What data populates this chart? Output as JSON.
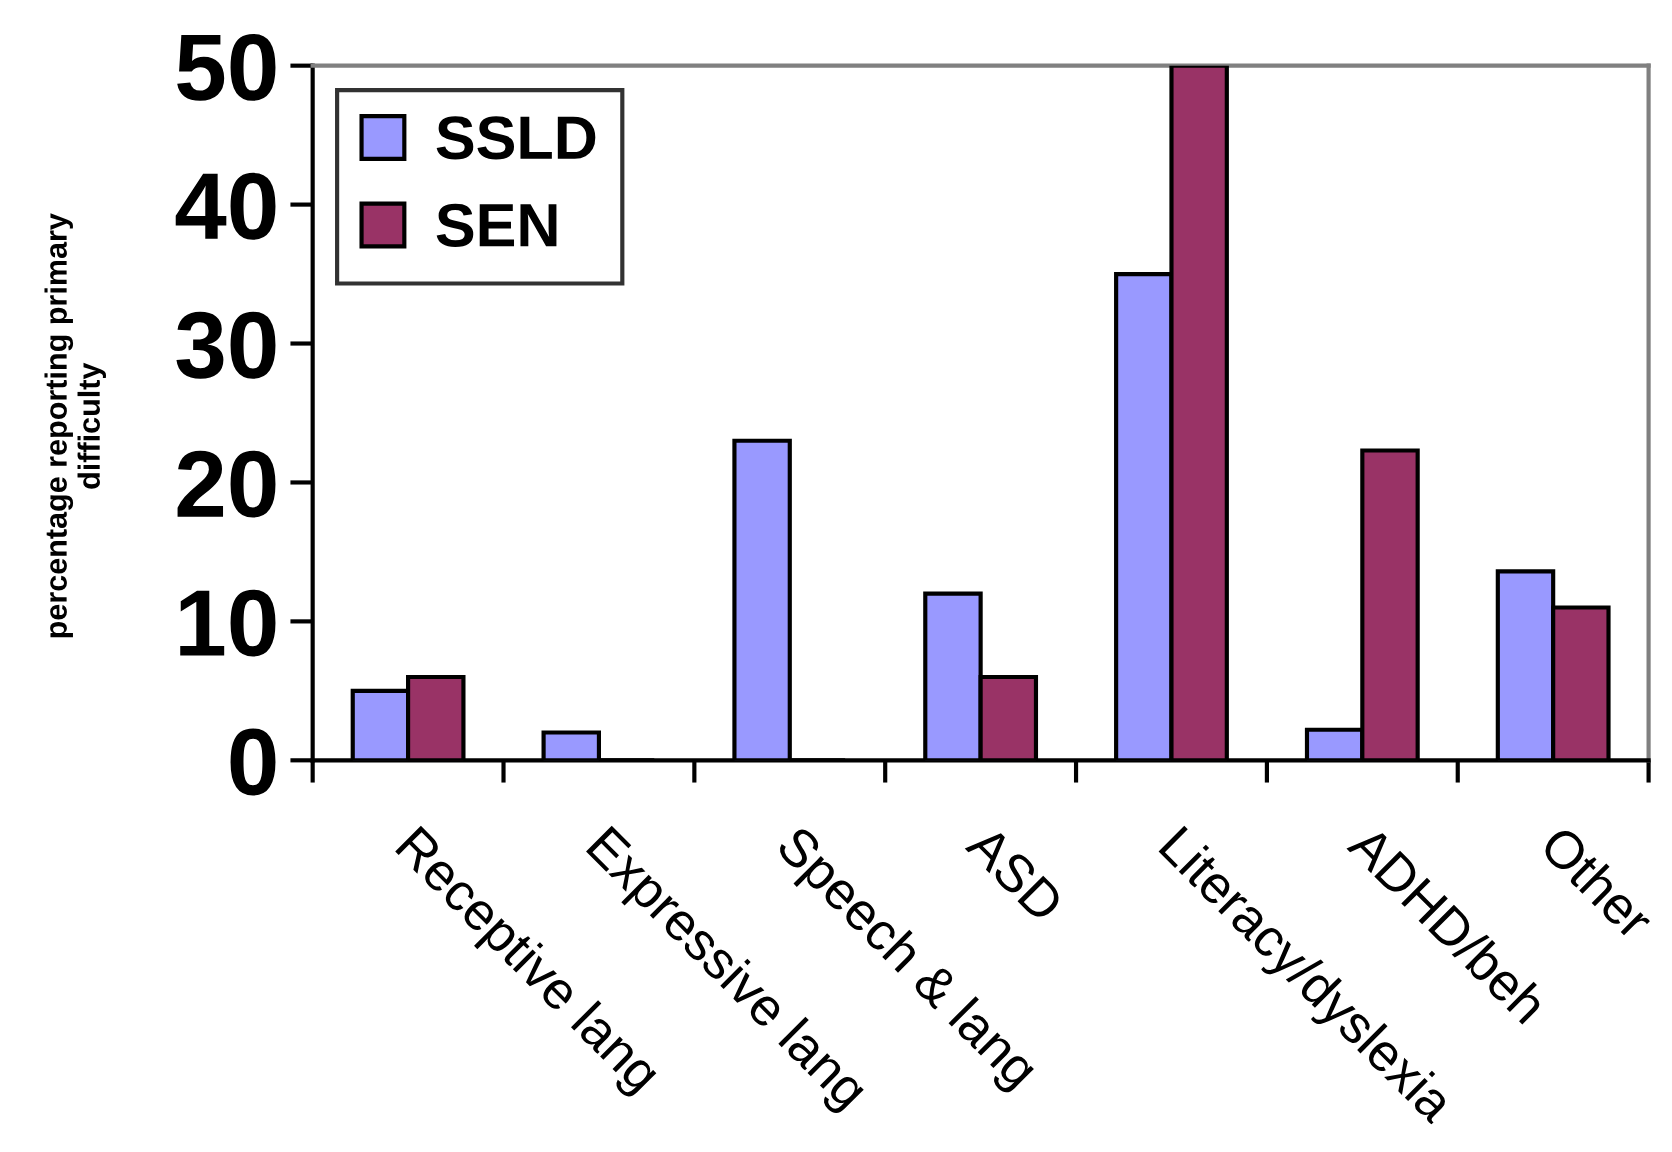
{
  "chart_data": {
    "type": "bar",
    "ylabel": "percentage reporting primary\ndifficulty",
    "categories": [
      "Receptive lang",
      "Expressive lang",
      "Speech & lang",
      "ASD",
      "Literacy/dyslexia",
      "ADHD/beh",
      "Other"
    ],
    "series": [
      {
        "name": "SSLD",
        "color": "#9999ff",
        "values": [
          5,
          2,
          23,
          12,
          35,
          2.2,
          13.6
        ]
      },
      {
        "name": "SEN",
        "color": "#993366",
        "values": [
          6,
          0,
          0,
          6,
          50,
          22.3,
          11
        ]
      }
    ],
    "ylim": [
      0,
      50
    ],
    "yticks": [
      0,
      10,
      20,
      30,
      40,
      50
    ],
    "legend": "top left"
  }
}
